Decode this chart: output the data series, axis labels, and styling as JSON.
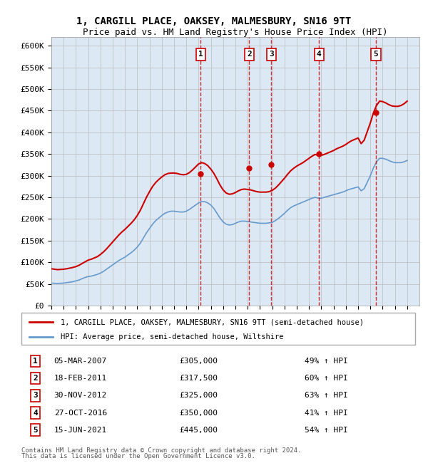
{
  "title": "1, CARGILL PLACE, OAKSEY, MALMESBURY, SN16 9TT",
  "subtitle": "Price paid vs. HM Land Registry's House Price Index (HPI)",
  "ylabel": "",
  "background_color": "#dce9f5",
  "plot_bg_color": "#dce9f5",
  "ylim": [
    0,
    620000
  ],
  "yticks": [
    0,
    50000,
    100000,
    150000,
    200000,
    250000,
    300000,
    350000,
    400000,
    450000,
    500000,
    550000,
    600000
  ],
  "ytick_labels": [
    "£0",
    "£50K",
    "£100K",
    "£150K",
    "£200K",
    "£250K",
    "£300K",
    "£350K",
    "£400K",
    "£450K",
    "£500K",
    "£550K",
    "£600K"
  ],
  "xlim_start": 1995.0,
  "xlim_end": 2025.0,
  "red_line_color": "#cc0000",
  "blue_line_color": "#6699cc",
  "sale_marker_color": "#cc0000",
  "sale_vline_color": "#cc0000",
  "transactions": [
    {
      "num": 1,
      "date_label": "05-MAR-2007",
      "year": 2007.17,
      "price": 305000,
      "pct": "49%"
    },
    {
      "num": 2,
      "date_label": "18-FEB-2011",
      "year": 2011.12,
      "price": 317500,
      "pct": "60%"
    },
    {
      "num": 3,
      "date_label": "30-NOV-2012",
      "year": 2012.92,
      "price": 325000,
      "pct": "63%"
    },
    {
      "num": 4,
      "date_label": "27-OCT-2016",
      "year": 2016.82,
      "price": 350000,
      "pct": "41%"
    },
    {
      "num": 5,
      "date_label": "15-JUN-2021",
      "year": 2021.45,
      "price": 445000,
      "pct": "54%"
    }
  ],
  "legend_line1": "1, CARGILL PLACE, OAKSEY, MALMESBURY, SN16 9TT (semi-detached house)",
  "legend_line2": "HPI: Average price, semi-detached house, Wiltshire",
  "footer1": "Contains HM Land Registry data © Crown copyright and database right 2024.",
  "footer2": "This data is licensed under the Open Government Licence v3.0.",
  "hpi_data": {
    "years": [
      1995.0,
      1995.25,
      1995.5,
      1995.75,
      1996.0,
      1996.25,
      1996.5,
      1996.75,
      1997.0,
      1997.25,
      1997.5,
      1997.75,
      1998.0,
      1998.25,
      1998.5,
      1998.75,
      1999.0,
      1999.25,
      1999.5,
      1999.75,
      2000.0,
      2000.25,
      2000.5,
      2000.75,
      2001.0,
      2001.25,
      2001.5,
      2001.75,
      2002.0,
      2002.25,
      2002.5,
      2002.75,
      2003.0,
      2003.25,
      2003.5,
      2003.75,
      2004.0,
      2004.25,
      2004.5,
      2004.75,
      2005.0,
      2005.25,
      2005.5,
      2005.75,
      2006.0,
      2006.25,
      2006.5,
      2006.75,
      2007.0,
      2007.25,
      2007.5,
      2007.75,
      2008.0,
      2008.25,
      2008.5,
      2008.75,
      2009.0,
      2009.25,
      2009.5,
      2009.75,
      2010.0,
      2010.25,
      2010.5,
      2010.75,
      2011.0,
      2011.25,
      2011.5,
      2011.75,
      2012.0,
      2012.25,
      2012.5,
      2012.75,
      2013.0,
      2013.25,
      2013.5,
      2013.75,
      2014.0,
      2014.25,
      2014.5,
      2014.75,
      2015.0,
      2015.25,
      2015.5,
      2015.75,
      2016.0,
      2016.25,
      2016.5,
      2016.75,
      2017.0,
      2017.25,
      2017.5,
      2017.75,
      2018.0,
      2018.25,
      2018.5,
      2018.75,
      2019.0,
      2019.25,
      2019.5,
      2019.75,
      2020.0,
      2020.25,
      2020.5,
      2020.75,
      2021.0,
      2021.25,
      2021.5,
      2021.75,
      2022.0,
      2022.25,
      2022.5,
      2022.75,
      2023.0,
      2023.25,
      2023.5,
      2023.75,
      2024.0
    ],
    "values": [
      52000,
      51500,
      51000,
      51500,
      52000,
      53000,
      54000,
      55000,
      57000,
      59000,
      62000,
      65000,
      67000,
      68000,
      70000,
      72000,
      75000,
      79000,
      84000,
      89000,
      94000,
      99000,
      104000,
      108000,
      112000,
      117000,
      122000,
      128000,
      135000,
      144000,
      156000,
      168000,
      178000,
      188000,
      196000,
      202000,
      208000,
      213000,
      216000,
      218000,
      218000,
      217000,
      216000,
      216000,
      218000,
      222000,
      227000,
      232000,
      237000,
      240000,
      240000,
      237000,
      232000,
      224000,
      213000,
      202000,
      193000,
      188000,
      186000,
      187000,
      190000,
      193000,
      195000,
      195000,
      194000,
      193000,
      192000,
      191000,
      190000,
      190000,
      190000,
      191000,
      192000,
      196000,
      201000,
      207000,
      213000,
      220000,
      226000,
      230000,
      233000,
      236000,
      239000,
      242000,
      245000,
      248000,
      250000,
      248000,
      248000,
      250000,
      252000,
      254000,
      256000,
      258000,
      260000,
      262000,
      265000,
      268000,
      270000,
      272000,
      274000,
      265000,
      270000,
      285000,
      300000,
      318000,
      332000,
      340000,
      340000,
      338000,
      335000,
      332000,
      330000,
      330000,
      330000,
      332000,
      335000
    ]
  },
  "price_paid_data": {
    "years": [
      1995.0,
      1995.25,
      1995.5,
      1995.75,
      1996.0,
      1996.25,
      1996.5,
      1996.75,
      1997.0,
      1997.25,
      1997.5,
      1997.75,
      1998.0,
      1998.25,
      1998.5,
      1998.75,
      1999.0,
      1999.25,
      1999.5,
      1999.75,
      2000.0,
      2000.25,
      2000.5,
      2000.75,
      2001.0,
      2001.25,
      2001.5,
      2001.75,
      2002.0,
      2002.25,
      2002.5,
      2002.75,
      2003.0,
      2003.25,
      2003.5,
      2003.75,
      2004.0,
      2004.25,
      2004.5,
      2004.75,
      2005.0,
      2005.25,
      2005.5,
      2005.75,
      2006.0,
      2006.25,
      2006.5,
      2006.75,
      2007.0,
      2007.25,
      2007.5,
      2007.75,
      2008.0,
      2008.25,
      2008.5,
      2008.75,
      2009.0,
      2009.25,
      2009.5,
      2009.75,
      2010.0,
      2010.25,
      2010.5,
      2010.75,
      2011.0,
      2011.25,
      2011.5,
      2011.75,
      2012.0,
      2012.25,
      2012.5,
      2012.75,
      2013.0,
      2013.25,
      2013.5,
      2013.75,
      2014.0,
      2014.25,
      2014.5,
      2014.75,
      2015.0,
      2015.25,
      2015.5,
      2015.75,
      2016.0,
      2016.25,
      2016.5,
      2016.75,
      2017.0,
      2017.25,
      2017.5,
      2017.75,
      2018.0,
      2018.25,
      2018.5,
      2018.75,
      2019.0,
      2019.25,
      2019.5,
      2019.75,
      2020.0,
      2020.25,
      2020.5,
      2020.75,
      2021.0,
      2021.25,
      2021.5,
      2021.75,
      2022.0,
      2022.25,
      2022.5,
      2022.75,
      2023.0,
      2023.25,
      2023.5,
      2023.75,
      2024.0
    ],
    "values": [
      85000,
      84000,
      83000,
      83500,
      84000,
      85000,
      86500,
      88000,
      90000,
      93000,
      97000,
      101000,
      105000,
      107000,
      110000,
      113000,
      118000,
      124000,
      131000,
      139000,
      147000,
      155000,
      163000,
      170000,
      176000,
      183000,
      190000,
      198000,
      208000,
      220000,
      235000,
      250000,
      263000,
      275000,
      284000,
      291000,
      297000,
      302000,
      305000,
      306000,
      306000,
      305000,
      303000,
      302000,
      303000,
      307000,
      313000,
      320000,
      327000,
      330000,
      328000,
      323000,
      315000,
      305000,
      292000,
      278000,
      267000,
      260000,
      257000,
      258000,
      261000,
      265000,
      268000,
      269000,
      268000,
      267000,
      265000,
      263000,
      262000,
      262000,
      262000,
      263000,
      266000,
      271000,
      278000,
      286000,
      294000,
      303000,
      311000,
      317000,
      322000,
      326000,
      330000,
      335000,
      340000,
      345000,
      349000,
      347000,
      347000,
      349000,
      352000,
      355000,
      358000,
      362000,
      365000,
      368000,
      372000,
      377000,
      381000,
      384000,
      387000,
      374000,
      382000,
      402000,
      422000,
      445000,
      462000,
      472000,
      471000,
      468000,
      464000,
      461000,
      460000,
      460000,
      462000,
      466000,
      472000
    ]
  }
}
